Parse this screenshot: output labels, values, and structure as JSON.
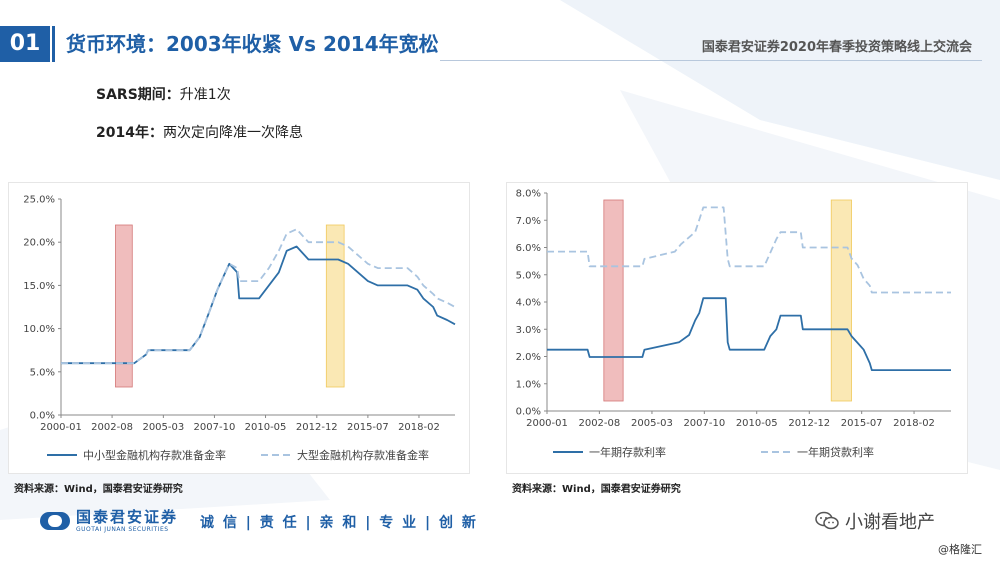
{
  "header": {
    "number": "01",
    "title": "货币环境：2003年收紧 Vs 2014年宽松",
    "right_text": "国泰君安证券2020年春季投资策略线上交流会"
  },
  "notes": [
    {
      "label": "SARS期间：",
      "text": "升准1次"
    },
    {
      "label": "2014年：",
      "text": "两次定向降准一次降息"
    }
  ],
  "charts": {
    "left": {
      "source": "资料来源：Wind，国泰君安证券研究"
    },
    "right": {
      "source": "资料来源：Wind，国泰君安证券研究"
    }
  },
  "footer": {
    "logo_cn": "国泰君安证券",
    "logo_en": "GUOTAI JUNAN SECURITIES",
    "slogan": "诚 信 | 责 任 | 亲 和 | 专 业 | 创 新",
    "wechat_name": "小谢看地产",
    "watermark": "@格隆汇"
  },
  "colors": {
    "brand_blue": "#1f5fa6",
    "series_solid": "#2e6fa7",
    "series_dashed": "#a9c4e0",
    "red_band": "#e89a9a",
    "yellow_band": "#f7dc8c"
  },
  "chart_data": [
    {
      "type": "line",
      "x_range": [
        2000.0,
        2019.9
      ],
      "xtick_labels": [
        "2000-01",
        "2002-08",
        "2005-03",
        "2007-10",
        "2010-05",
        "2012-12",
        "2015-07",
        "2018-02"
      ],
      "xtick_values": [
        2000.0,
        2002.58,
        2005.17,
        2007.75,
        2010.33,
        2012.92,
        2015.5,
        2018.08
      ],
      "ylim": [
        0,
        25
      ],
      "ytick_labels": [
        "0.0%",
        "5.0%",
        "10.0%",
        "15.0%",
        "20.0%",
        "25.0%"
      ],
      "ytick_values": [
        0,
        5,
        10,
        15,
        20,
        25
      ],
      "legend_position": "bottom",
      "shaded_periods": [
        {
          "x": [
            2002.75,
            2003.6
          ],
          "color": "red"
        },
        {
          "x": [
            2013.4,
            2014.3
          ],
          "color": "yellow"
        }
      ],
      "series": [
        {
          "name": "中小型金融机构存款准备金率",
          "style": "solid",
          "x": [
            2000.0,
            2003.7,
            2004.3,
            2004.4,
            2006.5,
            2007.0,
            2007.5,
            2007.9,
            2008.3,
            2008.5,
            2008.9,
            2009.0,
            2010.0,
            2010.5,
            2011.0,
            2011.4,
            2011.9,
            2012.5,
            2013.0,
            2014.0,
            2014.5,
            2015.0,
            2015.5,
            2016.0,
            2017.5,
            2018.0,
            2018.3,
            2018.8,
            2019.0,
            2019.5,
            2019.9
          ],
          "y": [
            6.0,
            6.0,
            7.0,
            7.5,
            7.5,
            9.0,
            12.0,
            14.5,
            16.5,
            17.5,
            16.5,
            13.5,
            13.5,
            15.0,
            16.5,
            19.0,
            19.5,
            18.0,
            18.0,
            18.0,
            17.5,
            16.5,
            15.5,
            15.0,
            15.0,
            14.5,
            13.5,
            12.5,
            11.5,
            11.0,
            10.5
          ]
        },
        {
          "name": "大型金融机构存款准备金率",
          "style": "dashed",
          "x": [
            2000.0,
            2003.7,
            2004.3,
            2004.4,
            2006.5,
            2007.0,
            2007.5,
            2007.9,
            2008.3,
            2008.5,
            2008.9,
            2009.0,
            2010.0,
            2010.5,
            2011.0,
            2011.4,
            2011.9,
            2012.5,
            2013.0,
            2014.0,
            2014.5,
            2015.0,
            2015.5,
            2016.0,
            2017.5,
            2018.0,
            2018.3,
            2018.8,
            2019.0,
            2019.5,
            2019.9
          ],
          "y": [
            6.0,
            6.0,
            7.0,
            7.5,
            7.5,
            9.0,
            12.0,
            14.5,
            16.5,
            17.5,
            17.0,
            15.5,
            15.5,
            17.0,
            19.0,
            21.0,
            21.5,
            20.0,
            20.0,
            20.0,
            19.5,
            18.5,
            17.5,
            17.0,
            17.0,
            16.0,
            15.0,
            14.0,
            13.5,
            13.0,
            12.5
          ]
        }
      ]
    },
    {
      "type": "line",
      "x_range": [
        2000.0,
        2019.9
      ],
      "xtick_labels": [
        "2000-01",
        "2002-08",
        "2005-03",
        "2007-10",
        "2010-05",
        "2012-12",
        "2015-07",
        "2018-02"
      ],
      "xtick_values": [
        2000.0,
        2002.58,
        2005.17,
        2007.75,
        2010.33,
        2012.92,
        2015.5,
        2018.08
      ],
      "ylim": [
        0,
        8
      ],
      "ytick_labels": [
        "0.0%",
        "1.0%",
        "2.0%",
        "3.0%",
        "4.0%",
        "5.0%",
        "6.0%",
        "7.0%",
        "8.0%"
      ],
      "ytick_values": [
        0,
        1,
        2,
        3,
        4,
        5,
        6,
        7,
        8
      ],
      "legend_position": "bottom",
      "shaded_periods": [
        {
          "x": [
            2002.8,
            2003.75
          ],
          "color": "red"
        },
        {
          "x": [
            2014.0,
            2015.0
          ],
          "color": "yellow"
        }
      ],
      "series": [
        {
          "name": "一年期存款利率",
          "style": "solid",
          "x": [
            2000.0,
            2002.0,
            2002.1,
            2004.7,
            2004.8,
            2006.5,
            2007.0,
            2007.3,
            2007.5,
            2007.7,
            2008.8,
            2008.9,
            2009.0,
            2010.7,
            2011.0,
            2011.3,
            2011.5,
            2012.5,
            2012.6,
            2014.8,
            2015.0,
            2015.3,
            2015.6,
            2015.9,
            2016.0,
            2019.9
          ],
          "y": [
            2.25,
            2.25,
            1.98,
            1.98,
            2.25,
            2.52,
            2.79,
            3.33,
            3.6,
            4.14,
            4.14,
            2.52,
            2.25,
            2.25,
            2.75,
            3.0,
            3.5,
            3.5,
            3.0,
            3.0,
            2.75,
            2.5,
            2.25,
            1.75,
            1.5,
            1.5
          ]
        },
        {
          "name": "一年期贷款利率",
          "style": "dashed",
          "x": [
            2000.0,
            2002.0,
            2002.1,
            2004.7,
            2004.8,
            2006.3,
            2006.6,
            2007.3,
            2007.5,
            2007.7,
            2008.7,
            2008.9,
            2009.0,
            2010.7,
            2011.0,
            2011.3,
            2011.5,
            2012.5,
            2012.6,
            2014.8,
            2015.0,
            2015.3,
            2015.6,
            2015.9,
            2016.0,
            2019.9
          ],
          "y": [
            5.85,
            5.85,
            5.31,
            5.31,
            5.58,
            5.85,
            6.12,
            6.57,
            7.02,
            7.47,
            7.47,
            5.58,
            5.31,
            5.31,
            5.81,
            6.31,
            6.56,
            6.56,
            6.0,
            6.0,
            5.6,
            5.35,
            4.85,
            4.6,
            4.35,
            4.35
          ]
        }
      ]
    }
  ]
}
